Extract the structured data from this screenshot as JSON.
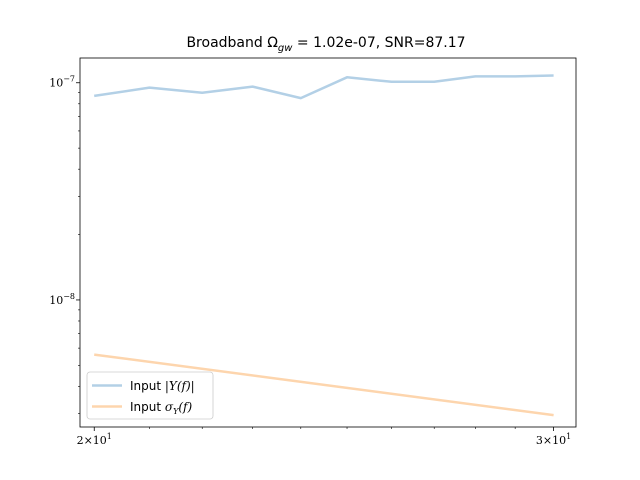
{
  "chart_data": {
    "type": "line",
    "title": "Broadband Ω_gw = 1.02e-07, SNR=87.17",
    "title_parts": {
      "prefix": "Broadband Ω",
      "sub": "gw",
      "suffix": " = 1.02e-07, SNR=87.17"
    },
    "xlabel": "",
    "ylabel": "",
    "x_scale": "log",
    "y_scale": "log",
    "xlim": [
      19.75,
      30.6
    ],
    "ylim": [
      2.6e-09,
      1.3e-07
    ],
    "grid": false,
    "legend_placement": "lower-left",
    "x_ticks": [
      {
        "value": 20,
        "base": "2",
        "exp": "1"
      },
      {
        "value": 30,
        "base": "3",
        "exp": "1"
      }
    ],
    "y_ticks": [
      {
        "value": 1e-07,
        "exp": "−7"
      },
      {
        "value": 1e-08,
        "exp": "−8"
      }
    ],
    "series": [
      {
        "name": "Input |Y(f)|",
        "color": "#b3d0e6",
        "x": [
          20,
          21,
          22,
          23,
          24,
          25,
          26,
          27,
          28,
          29,
          30
        ],
        "y": [
          8.7e-08,
          9.5e-08,
          9e-08,
          9.6e-08,
          8.5e-08,
          1.06e-07,
          1.01e-07,
          1.01e-07,
          1.07e-07,
          1.07e-07,
          1.08e-07
        ]
      },
      {
        "name": "Input σ_Y(f)",
        "color": "#fdd5ad",
        "x": [
          20,
          30
        ],
        "y": [
          5.6e-09,
          2.95e-09
        ]
      }
    ]
  },
  "legend": [
    {
      "prefix": "Input ",
      "math": "|Y(f)|",
      "sub": ""
    },
    {
      "prefix": "Input ",
      "math": "σ",
      "sub": "Y",
      "tail": "(f)"
    }
  ]
}
